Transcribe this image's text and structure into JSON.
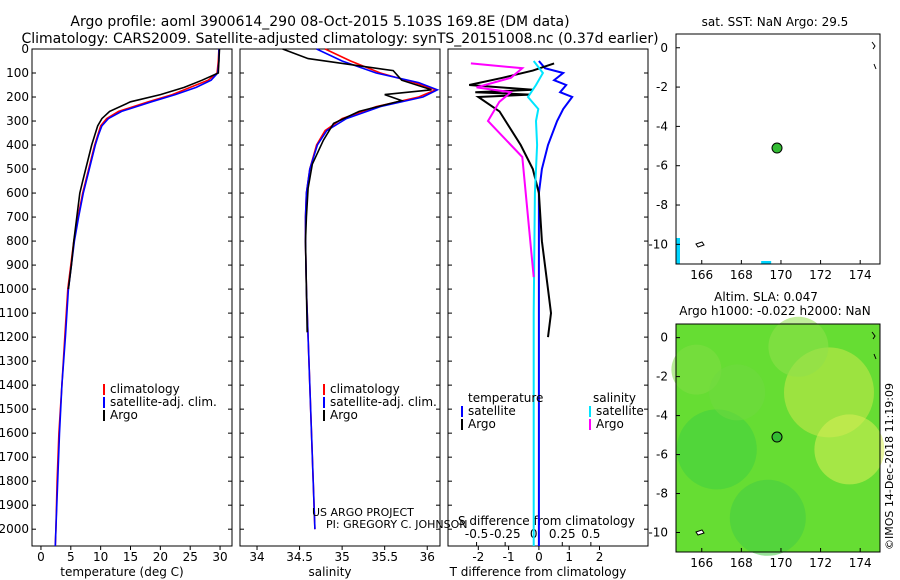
{
  "title_lines": [
    "Argo profile: aoml 3900614_290 08-Oct-2015 5.103S 169.8E (DM data)",
    "Climatology: CARS2009. Satellite-adjusted climatology: synTS_20151008.nc (0.37d earlier)"
  ],
  "watermark": "©IMOS 14-Dec-2018 11:19:09",
  "credit_lines": [
    "US ARGO PROJECT",
    "PI: GREGORY C. JOHNSON"
  ],
  "colors": {
    "climatology": "#ff0000",
    "satellite": "#0000ff",
    "argo": "#000000",
    "t_sat": "#0000ff",
    "t_argo": "#000000",
    "s_sat": "#00e5ff",
    "s_argo": "#ff00ff",
    "map_ocean": "#66dd33",
    "map_marker": "#33bb33"
  },
  "chart_data": [
    {
      "id": "temperature",
      "type": "line",
      "xlabel": "temperature (deg C)",
      "xlim": [
        -1.5,
        32
      ],
      "xticks": [
        0,
        5,
        10,
        15,
        20,
        25,
        30
      ],
      "ylim": [
        0,
        2070
      ],
      "yticks": [
        0,
        100,
        200,
        300,
        400,
        500,
        600,
        700,
        800,
        900,
        1000,
        1100,
        1200,
        1300,
        1400,
        1500,
        1600,
        1700,
        1800,
        1900,
        2000
      ],
      "legend": [
        "climatology",
        "satellite-adj. clim.",
        "Argo"
      ],
      "series": [
        {
          "name": "climatology",
          "color": "#ff0000",
          "x": [
            29.8,
            29.7,
            29.5,
            28,
            25,
            22,
            18,
            13,
            11,
            10,
            9.5,
            9,
            8.5,
            8,
            7.5,
            7,
            6.2,
            5.5,
            5,
            4.5,
            4,
            3.5,
            3,
            2.7,
            2.5,
            2.4
          ],
          "depth": [
            0,
            50,
            100,
            130,
            160,
            190,
            220,
            260,
            290,
            320,
            360,
            400,
            450,
            500,
            550,
            600,
            700,
            800,
            900,
            1000,
            1200,
            1400,
            1600,
            1800,
            2000,
            2070
          ]
        },
        {
          "name": "satellite-adj. clim.",
          "color": "#0000ff",
          "x": [
            29.8,
            29.8,
            29.6,
            28.5,
            26,
            22.5,
            18.5,
            13.5,
            11.3,
            10.2,
            9.6,
            9.1,
            8.6,
            8.1,
            7.6,
            7.1,
            6.3,
            5.6,
            5.1,
            4.6,
            4.1,
            3.5,
            3.1,
            2.8,
            2.5,
            2.4
          ],
          "depth": [
            0,
            50,
            100,
            130,
            160,
            190,
            220,
            260,
            290,
            320,
            360,
            400,
            450,
            500,
            550,
            600,
            700,
            800,
            900,
            1000,
            1200,
            1400,
            1600,
            1800,
            2000,
            2070
          ]
        },
        {
          "name": "Argo",
          "color": "#000000",
          "x": [
            29.9,
            29.8,
            29.7,
            27,
            24,
            20,
            15,
            11.5,
            10.2,
            9.5,
            9,
            8.5,
            8,
            7.5,
            7,
            6.5,
            6,
            5.5,
            5.1,
            4.6
          ],
          "depth": [
            0,
            50,
            100,
            130,
            160,
            190,
            220,
            260,
            290,
            320,
            360,
            400,
            450,
            500,
            550,
            600,
            700,
            800,
            900,
            1000
          ]
        }
      ]
    },
    {
      "id": "salinity",
      "type": "line",
      "xlabel": "salinity",
      "xlim": [
        33.8,
        36.15
      ],
      "xticks": [
        34,
        34.5,
        35,
        35.5,
        36
      ],
      "xtick_labels": [
        "34",
        "34.5",
        "35",
        "35.5",
        "36"
      ],
      "ylim": [
        0,
        2070
      ],
      "legend": [
        "climatology",
        "satellite-adj. clim.",
        "Argo"
      ],
      "series": [
        {
          "name": "climatology",
          "color": "#ff0000",
          "x": [
            34.8,
            35.1,
            35.45,
            35.85,
            36.1,
            35.9,
            35.4,
            35.0,
            34.8,
            34.7,
            34.62,
            34.58,
            34.57,
            34.57,
            34.58,
            34.6,
            34.62,
            34.64,
            34.66,
            34.68
          ],
          "depth": [
            0,
            50,
            100,
            140,
            170,
            200,
            240,
            290,
            340,
            400,
            500,
            600,
            700,
            800,
            1000,
            1200,
            1400,
            1600,
            1800,
            2000
          ]
        },
        {
          "name": "satellite-adj. clim.",
          "color": "#0000ff",
          "x": [
            34.7,
            35.0,
            35.4,
            35.9,
            36.12,
            35.95,
            35.45,
            35.05,
            34.82,
            34.71,
            34.62,
            34.58,
            34.57,
            34.57,
            34.58,
            34.6,
            34.62,
            34.64,
            34.66,
            34.68
          ],
          "depth": [
            0,
            50,
            100,
            140,
            170,
            200,
            240,
            290,
            340,
            400,
            500,
            600,
            700,
            800,
            1000,
            1200,
            1400,
            1600,
            1800,
            2000
          ]
        },
        {
          "name": "Argo",
          "color": "#000000",
          "x": [
            34.3,
            34.6,
            35.6,
            35.7,
            36.05,
            35.5,
            35.7,
            35.2,
            34.9,
            34.78,
            34.65,
            34.6,
            34.58,
            34.57,
            34.58,
            34.59
          ],
          "depth": [
            0,
            40,
            90,
            130,
            170,
            190,
            215,
            260,
            310,
            380,
            480,
            580,
            700,
            800,
            1000,
            1180
          ]
        }
      ]
    },
    {
      "id": "difference",
      "type": "line",
      "xlabel": "T difference from climatology",
      "top_label": "S difference from climatology",
      "xlim": [
        -3,
        3.6
      ],
      "xticks": [
        -2,
        -1,
        0,
        1,
        2
      ],
      "xtick_labels": [
        "-2",
        "-1",
        "0",
        "1",
        "2"
      ],
      "sticks": [
        -0.5,
        -0.25,
        0,
        0.25,
        0.5
      ],
      "stick_labels": [
        "-0.5",
        "-0.25",
        "0",
        "0.25",
        "0.5"
      ],
      "ylim": [
        0,
        2070
      ],
      "legend": {
        "temperature_header": "temperature",
        "salinity_header": "salinity",
        "temperature": [
          "satellite",
          "Argo"
        ],
        "salinity": [
          "satellite",
          "Argo"
        ]
      },
      "series": [
        {
          "name": "T satellite",
          "color": "#0000ff",
          "x": [
            0,
            0.2,
            0.8,
            0.5,
            0.9,
            0.7,
            1.1,
            0.8,
            0.6,
            0.3,
            0.1,
            0,
            0,
            0,
            0
          ],
          "depth": [
            50,
            80,
            100,
            130,
            150,
            180,
            200,
            250,
            300,
            400,
            500,
            600,
            800,
            1200,
            2070
          ]
        },
        {
          "name": "T Argo",
          "color": "#000000",
          "x": [
            0.5,
            -0.2,
            -1.2,
            -2.3,
            -0.2,
            -2.1,
            -0.3,
            -2.0,
            -1.3,
            -0.6,
            -0.2,
            0,
            0.1,
            0.3,
            0.4,
            0.3
          ],
          "depth": [
            60,
            90,
            120,
            150,
            170,
            180,
            190,
            200,
            260,
            400,
            500,
            600,
            800,
            1000,
            1100,
            1200
          ]
        },
        {
          "name": "S satellite",
          "color": "#00e5ff",
          "x": [
            0,
            0.08,
            0.02,
            -0.05,
            0.04,
            0.02,
            0.03,
            0.01,
            0.0,
            0.0,
            0.0
          ],
          "depth": [
            50,
            100,
            150,
            200,
            250,
            300,
            400,
            600,
            1100,
            1500,
            2070
          ]
        },
        {
          "name": "S Argo",
          "color": "#ff00ff",
          "x": [
            -0.55,
            -0.1,
            -0.2,
            -0.5,
            -0.2,
            -0.3,
            -0.4,
            -0.1,
            0.0
          ],
          "depth": [
            60,
            80,
            120,
            160,
            180,
            220,
            300,
            450,
            950
          ]
        }
      ]
    },
    {
      "id": "sst_map",
      "type": "scatter",
      "title": "sat. SST: NaN Argo: 29.5",
      "xlim": [
        164.7,
        175
      ],
      "ylim": [
        -11,
        0.7
      ],
      "xticks": [
        166,
        168,
        170,
        172,
        174
      ],
      "yticks": [
        0,
        -2,
        -4,
        -6,
        -8,
        -10
      ],
      "point": {
        "lon": 169.8,
        "lat": -5.1
      }
    },
    {
      "id": "sla_map",
      "type": "heatmap",
      "title_lines": [
        "Altim. SLA: 0.047",
        "Argo h1000: -0.022 h2000: NaN"
      ],
      "xlim": [
        164.7,
        175
      ],
      "ylim": [
        -11,
        0.7
      ],
      "xticks": [
        166,
        168,
        170,
        172,
        174
      ],
      "yticks": [
        0,
        -2,
        -4,
        -6,
        -8,
        -10
      ],
      "point": {
        "lon": 169.8,
        "lat": -5.1
      }
    }
  ]
}
